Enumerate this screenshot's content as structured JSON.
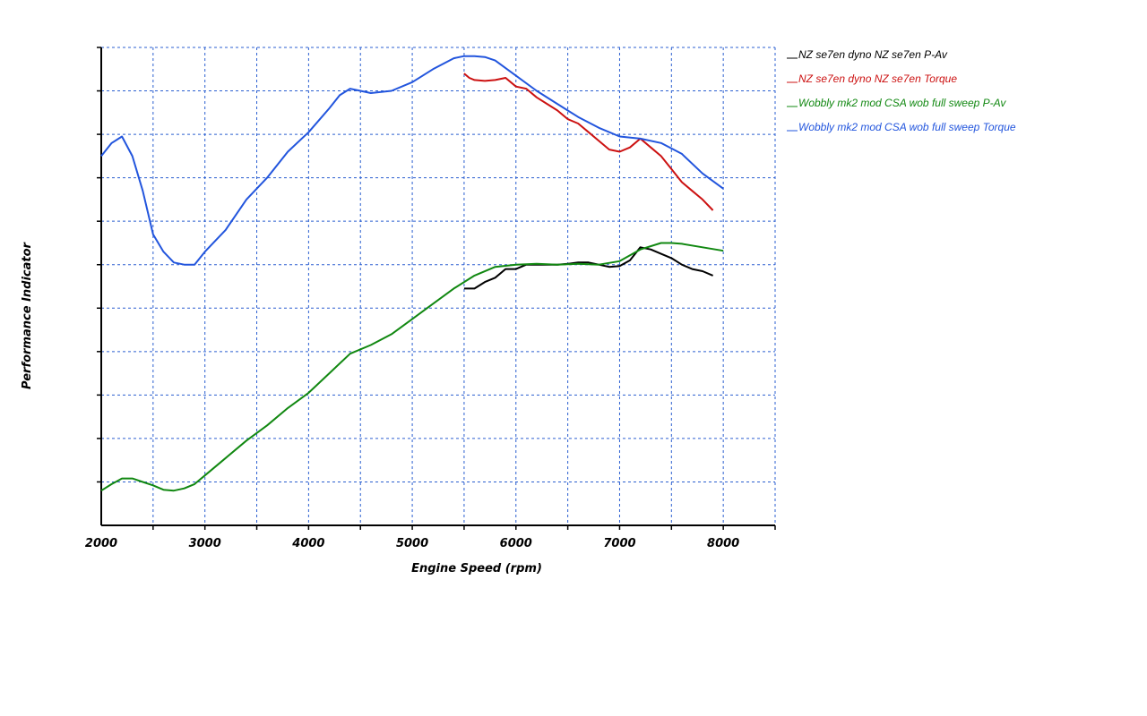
{
  "chart_data": {
    "type": "line",
    "title": "",
    "xlabel": "Engine Speed (rpm)",
    "ylabel": "Performance Indicator",
    "xlim": [
      2000,
      8500
    ],
    "ylim": [
      0,
      11
    ],
    "xticks": [
      2000,
      3000,
      4000,
      5000,
      6000,
      7000,
      8000
    ],
    "x_gridlines": [
      2000,
      2500,
      3000,
      3500,
      4000,
      4500,
      5000,
      5500,
      6000,
      6500,
      7000,
      7500,
      8000,
      8500
    ],
    "y_gridlines": [
      1,
      2,
      3,
      4,
      5,
      6,
      7,
      8,
      9,
      10,
      11
    ],
    "grid": true,
    "legend_position": "right",
    "series": [
      {
        "name": "NZ se7en dyno NZ se7en  P-Av",
        "color": "#000000",
        "x": [
          5500,
          5600,
          5700,
          5800,
          5900,
          6000,
          6100,
          6200,
          6300,
          6400,
          6500,
          6600,
          6700,
          6800,
          6900,
          7000,
          7100,
          7200,
          7300,
          7400,
          7500,
          7600,
          7700,
          7800,
          7900
        ],
        "y": [
          5.45,
          5.45,
          5.6,
          5.7,
          5.9,
          5.9,
          6.0,
          6.0,
          6.0,
          6.0,
          6.02,
          6.05,
          6.05,
          6.0,
          5.95,
          5.97,
          6.1,
          6.4,
          6.35,
          6.25,
          6.15,
          6.0,
          5.9,
          5.85,
          5.75
        ]
      },
      {
        "name": "NZ se7en dyno NZ se7en  Torque",
        "color": "#cc1111",
        "x": [
          5500,
          5550,
          5600,
          5700,
          5800,
          5900,
          6000,
          6100,
          6200,
          6300,
          6400,
          6500,
          6600,
          6700,
          6800,
          6900,
          7000,
          7100,
          7200,
          7300,
          7400,
          7500,
          7600,
          7700,
          7800,
          7900
        ],
        "y": [
          10.4,
          10.3,
          10.25,
          10.23,
          10.25,
          10.3,
          10.1,
          10.05,
          9.85,
          9.7,
          9.55,
          9.35,
          9.25,
          9.05,
          8.85,
          8.65,
          8.6,
          8.7,
          8.9,
          8.7,
          8.5,
          8.2,
          7.9,
          7.7,
          7.5,
          7.25
        ]
      },
      {
        "name": "Wobbly mk2 mod CSA wob full sweep  P-Av",
        "color": "#118811",
        "x": [
          2000,
          2100,
          2200,
          2300,
          2400,
          2500,
          2600,
          2700,
          2800,
          2900,
          3000,
          3200,
          3400,
          3600,
          3800,
          4000,
          4200,
          4400,
          4600,
          4800,
          5000,
          5200,
          5400,
          5600,
          5800,
          6000,
          6200,
          6400,
          6600,
          6800,
          7000,
          7200,
          7400,
          7500,
          7600,
          7800,
          8000
        ],
        "y": [
          0.8,
          0.95,
          1.08,
          1.08,
          1.0,
          0.92,
          0.82,
          0.8,
          0.85,
          0.95,
          1.15,
          1.55,
          1.95,
          2.3,
          2.7,
          3.05,
          3.5,
          3.95,
          4.15,
          4.4,
          4.75,
          5.1,
          5.45,
          5.75,
          5.95,
          6.0,
          6.02,
          6.0,
          6.02,
          6.0,
          6.08,
          6.35,
          6.5,
          6.5,
          6.48,
          6.4,
          6.32
        ]
      },
      {
        "name": "Wobbly mk2 mod CSA wob full sweep  Torque",
        "color": "#2255dd",
        "x": [
          2000,
          2100,
          2200,
          2300,
          2400,
          2500,
          2600,
          2700,
          2800,
          2900,
          3000,
          3200,
          3400,
          3600,
          3800,
          4000,
          4200,
          4300,
          4400,
          4500,
          4600,
          4800,
          5000,
          5200,
          5400,
          5500,
          5600,
          5700,
          5800,
          6000,
          6200,
          6400,
          6600,
          6800,
          7000,
          7200,
          7400,
          7600,
          7800,
          8000
        ],
        "y": [
          8.5,
          8.8,
          8.95,
          8.5,
          7.7,
          6.7,
          6.3,
          6.05,
          6.0,
          6.0,
          6.3,
          6.8,
          7.5,
          8.0,
          8.6,
          9.05,
          9.6,
          9.9,
          10.05,
          10.0,
          9.95,
          10.0,
          10.2,
          10.5,
          10.75,
          10.8,
          10.8,
          10.78,
          10.7,
          10.35,
          10.0,
          9.7,
          9.4,
          9.15,
          8.95,
          8.9,
          8.8,
          8.55,
          8.1,
          7.75
        ]
      }
    ]
  }
}
